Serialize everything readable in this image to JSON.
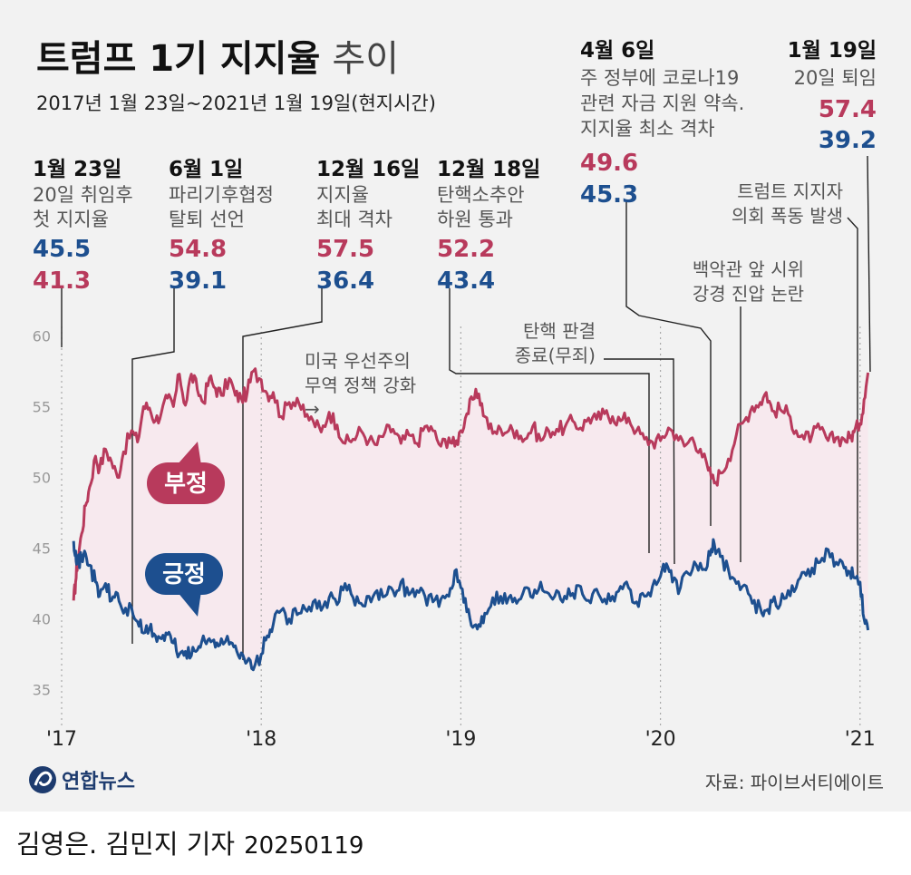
{
  "header": {
    "title_bold": "트럼프 1기 지지율",
    "title_light": "추이",
    "subtitle": "2017년 1월 23일~2021년 1월 19일(현지시간)"
  },
  "colors": {
    "negative": "#b83a5c",
    "positive": "#1d4f8f",
    "band": "#f7e9ee"
  },
  "callouts": [
    {
      "date": "1월 23일",
      "lines": [
        "20일 취임후",
        "첫 지지율"
      ],
      "values": [
        {
          "kind": "positive",
          "text": "45.5"
        },
        {
          "kind": "negative",
          "text": "41.3"
        }
      ]
    },
    {
      "date": "6월 1일",
      "lines": [
        "파리기후협정",
        "탈퇴 선언"
      ],
      "values": [
        {
          "kind": "negative",
          "text": "54.8"
        },
        {
          "kind": "positive",
          "text": "39.1"
        }
      ]
    },
    {
      "date": "12월 16일",
      "lines": [
        "지지율",
        "최대 격차"
      ],
      "values": [
        {
          "kind": "negative",
          "text": "57.5"
        },
        {
          "kind": "positive",
          "text": "36.4"
        }
      ]
    },
    {
      "date": "12월 18일",
      "lines": [
        "탄핵소추안",
        "하원 통과"
      ],
      "values": [
        {
          "kind": "negative",
          "text": "52.2"
        },
        {
          "kind": "positive",
          "text": "43.4"
        }
      ]
    },
    {
      "date": "4월 6일",
      "lines": [
        "주 정부에 코로나19",
        "관련 자금 지원 약속.",
        "지지율 최소 격차"
      ],
      "values": [
        {
          "kind": "negative",
          "text": "49.6"
        },
        {
          "kind": "positive",
          "text": "45.3"
        }
      ]
    },
    {
      "date": "1월 19일",
      "lines": [
        "20일 퇴임"
      ],
      "values": [
        {
          "kind": "negative",
          "text": "57.4"
        },
        {
          "kind": "positive",
          "text": "39.2"
        }
      ]
    }
  ],
  "annotations": [
    {
      "lines": [
        "미국 우선주의",
        "무역 정책 강화"
      ],
      "arrow": "→"
    },
    {
      "lines": [
        "탄핵 판결",
        "종료(무죄)"
      ]
    },
    {
      "lines": [
        "백악관 앞 시위",
        "강경 진압 논란"
      ]
    },
    {
      "lines": [
        "트럼트 지지자",
        "의회 폭동 발생"
      ]
    }
  ],
  "bubbles": {
    "negative": "부정",
    "positive": "긍정"
  },
  "source": "자료: 파이브서티에이트",
  "logo": "연합뉴스",
  "credit": {
    "authors": "김영은. 김민지 기자",
    "date": "20250119"
  },
  "chart_data": {
    "type": "line",
    "x_unit": "years since 2017-01-01",
    "xlim": [
      0,
      4.06
    ],
    "ylim": [
      33.5,
      61.5
    ],
    "yticks": [
      35,
      40,
      45,
      50,
      55,
      60
    ],
    "ytick_labels": [
      "35",
      "40",
      "45",
      "50",
      "55",
      "60"
    ],
    "xticks": [
      0,
      1,
      2,
      3,
      4
    ],
    "xtick_labels": [
      "'17",
      "'18",
      "'19",
      "'20",
      "'21"
    ],
    "series": [
      {
        "name": "부정",
        "kind": "negative",
        "points": [
          [
            0.06,
            41.3
          ],
          [
            0.07,
            42.6
          ],
          [
            0.08,
            44.2
          ],
          [
            0.1,
            46.0
          ],
          [
            0.12,
            48.0
          ],
          [
            0.14,
            49.3
          ],
          [
            0.17,
            51.5
          ],
          [
            0.19,
            50.6
          ],
          [
            0.22,
            52.0
          ],
          [
            0.25,
            51.1
          ],
          [
            0.28,
            50.0
          ],
          [
            0.31,
            51.8
          ],
          [
            0.35,
            53.3
          ],
          [
            0.38,
            52.5
          ],
          [
            0.41,
            55.0
          ],
          [
            0.44,
            54.9
          ],
          [
            0.47,
            54.0
          ],
          [
            0.5,
            54.6
          ],
          [
            0.53,
            55.6
          ],
          [
            0.56,
            55.0
          ],
          [
            0.59,
            57.3
          ],
          [
            0.62,
            55.1
          ],
          [
            0.65,
            57.3
          ],
          [
            0.68,
            56.2
          ],
          [
            0.71,
            55.3
          ],
          [
            0.74,
            57.0
          ],
          [
            0.77,
            56.3
          ],
          [
            0.8,
            55.8
          ],
          [
            0.84,
            57.0
          ],
          [
            0.87,
            55.8
          ],
          [
            0.9,
            55.6
          ],
          [
            0.93,
            56.0
          ],
          [
            0.96,
            57.5
          ],
          [
            1.0,
            56.9
          ],
          [
            1.03,
            55.9
          ],
          [
            1.06,
            56.0
          ],
          [
            1.1,
            54.3
          ],
          [
            1.14,
            55.3
          ],
          [
            1.18,
            55.6
          ],
          [
            1.22,
            54.3
          ],
          [
            1.26,
            54.0
          ],
          [
            1.3,
            53.2
          ],
          [
            1.34,
            54.6
          ],
          [
            1.38,
            53.7
          ],
          [
            1.42,
            52.4
          ],
          [
            1.46,
            52.7
          ],
          [
            1.5,
            53.3
          ],
          [
            1.54,
            52.6
          ],
          [
            1.58,
            52.3
          ],
          [
            1.62,
            53.2
          ],
          [
            1.66,
            53.4
          ],
          [
            1.7,
            52.4
          ],
          [
            1.74,
            53.0
          ],
          [
            1.78,
            52.4
          ],
          [
            1.82,
            53.6
          ],
          [
            1.86,
            53.3
          ],
          [
            1.9,
            52.2
          ],
          [
            1.94,
            52.8
          ],
          [
            1.97,
            52.2
          ],
          [
            2.0,
            53.3
          ],
          [
            2.03,
            54.5
          ],
          [
            2.06,
            55.5
          ],
          [
            2.09,
            55.9
          ],
          [
            2.12,
            54.3
          ],
          [
            2.16,
            53.1
          ],
          [
            2.2,
            53.4
          ],
          [
            2.24,
            53.3
          ],
          [
            2.28,
            53.3
          ],
          [
            2.32,
            52.7
          ],
          [
            2.36,
            53.6
          ],
          [
            2.4,
            52.6
          ],
          [
            2.44,
            53.3
          ],
          [
            2.48,
            53.4
          ],
          [
            2.52,
            53.5
          ],
          [
            2.56,
            54.0
          ],
          [
            2.6,
            53.5
          ],
          [
            2.64,
            54.2
          ],
          [
            2.68,
            54.1
          ],
          [
            2.72,
            54.5
          ],
          [
            2.76,
            54.3
          ],
          [
            2.8,
            54.0
          ],
          [
            2.84,
            54.2
          ],
          [
            2.88,
            53.3
          ],
          [
            2.92,
            52.7
          ],
          [
            2.96,
            52.5
          ],
          [
            3.0,
            52.6
          ],
          [
            3.04,
            53.5
          ],
          [
            3.08,
            53.0
          ],
          [
            3.12,
            52.2
          ],
          [
            3.16,
            52.8
          ],
          [
            3.2,
            52.0
          ],
          [
            3.24,
            50.5
          ],
          [
            3.27,
            49.6
          ],
          [
            3.3,
            50.3
          ],
          [
            3.34,
            51.3
          ],
          [
            3.38,
            53.0
          ],
          [
            3.42,
            54.0
          ],
          [
            3.46,
            55.0
          ],
          [
            3.5,
            55.3
          ],
          [
            3.53,
            56.0
          ],
          [
            3.56,
            54.7
          ],
          [
            3.6,
            54.8
          ],
          [
            3.64,
            54.5
          ],
          [
            3.68,
            53.3
          ],
          [
            3.72,
            52.7
          ],
          [
            3.76,
            53.0
          ],
          [
            3.8,
            53.4
          ],
          [
            3.84,
            52.6
          ],
          [
            3.88,
            52.8
          ],
          [
            3.92,
            52.7
          ],
          [
            3.95,
            52.8
          ],
          [
            3.97,
            53.2
          ],
          [
            4.0,
            53.8
          ],
          [
            4.02,
            55.5
          ],
          [
            4.04,
            57.4
          ]
        ]
      },
      {
        "name": "긍정",
        "kind": "positive",
        "points": [
          [
            0.06,
            45.5
          ],
          [
            0.07,
            44.8
          ],
          [
            0.08,
            44.0
          ],
          [
            0.1,
            44.2
          ],
          [
            0.12,
            44.6
          ],
          [
            0.14,
            43.8
          ],
          [
            0.17,
            42.6
          ],
          [
            0.19,
            41.6
          ],
          [
            0.22,
            42.5
          ],
          [
            0.25,
            41.3
          ],
          [
            0.28,
            41.8
          ],
          [
            0.31,
            40.4
          ],
          [
            0.35,
            40.8
          ],
          [
            0.38,
            39.8
          ],
          [
            0.41,
            39.0
          ],
          [
            0.44,
            39.3
          ],
          [
            0.47,
            38.8
          ],
          [
            0.5,
            38.6
          ],
          [
            0.53,
            38.9
          ],
          [
            0.56,
            38.3
          ],
          [
            0.59,
            37.5
          ],
          [
            0.62,
            37.7
          ],
          [
            0.65,
            37.4
          ],
          [
            0.68,
            37.8
          ],
          [
            0.71,
            38.8
          ],
          [
            0.74,
            38.6
          ],
          [
            0.77,
            38.0
          ],
          [
            0.8,
            38.6
          ],
          [
            0.84,
            38.2
          ],
          [
            0.87,
            38.1
          ],
          [
            0.9,
            37.6
          ],
          [
            0.93,
            37.0
          ],
          [
            0.96,
            36.4
          ],
          [
            1.0,
            37.5
          ],
          [
            1.03,
            38.8
          ],
          [
            1.06,
            39.6
          ],
          [
            1.1,
            40.6
          ],
          [
            1.14,
            40.0
          ],
          [
            1.18,
            40.3
          ],
          [
            1.22,
            40.7
          ],
          [
            1.26,
            41.2
          ],
          [
            1.3,
            40.6
          ],
          [
            1.34,
            41.5
          ],
          [
            1.38,
            41.0
          ],
          [
            1.42,
            42.5
          ],
          [
            1.46,
            41.5
          ],
          [
            1.5,
            41.1
          ],
          [
            1.54,
            41.6
          ],
          [
            1.58,
            42.0
          ],
          [
            1.62,
            41.6
          ],
          [
            1.66,
            42.0
          ],
          [
            1.7,
            42.6
          ],
          [
            1.74,
            41.7
          ],
          [
            1.78,
            42.0
          ],
          [
            1.82,
            41.6
          ],
          [
            1.86,
            41.2
          ],
          [
            1.9,
            41.4
          ],
          [
            1.94,
            41.6
          ],
          [
            1.97,
            43.4
          ],
          [
            2.0,
            42.2
          ],
          [
            2.03,
            40.5
          ],
          [
            2.06,
            39.4
          ],
          [
            2.09,
            39.6
          ],
          [
            2.12,
            40.4
          ],
          [
            2.16,
            41.5
          ],
          [
            2.2,
            41.6
          ],
          [
            2.24,
            41.5
          ],
          [
            2.28,
            41.1
          ],
          [
            2.32,
            42.2
          ],
          [
            2.36,
            41.5
          ],
          [
            2.4,
            42.6
          ],
          [
            2.44,
            41.8
          ],
          [
            2.48,
            42.0
          ],
          [
            2.52,
            41.6
          ],
          [
            2.56,
            41.8
          ],
          [
            2.6,
            42.3
          ],
          [
            2.64,
            41.3
          ],
          [
            2.68,
            42.1
          ],
          [
            2.72,
            41.4
          ],
          [
            2.76,
            41.6
          ],
          [
            2.8,
            42.3
          ],
          [
            2.84,
            42.2
          ],
          [
            2.88,
            41.2
          ],
          [
            2.92,
            41.6
          ],
          [
            2.96,
            42.3
          ],
          [
            3.0,
            43.0
          ],
          [
            3.03,
            43.9
          ],
          [
            3.06,
            42.6
          ],
          [
            3.1,
            42.2
          ],
          [
            3.14,
            43.2
          ],
          [
            3.18,
            43.8
          ],
          [
            3.22,
            43.5
          ],
          [
            3.25,
            44.5
          ],
          [
            3.27,
            45.3
          ],
          [
            3.3,
            44.4
          ],
          [
            3.34,
            43.5
          ],
          [
            3.38,
            42.5
          ],
          [
            3.42,
            42.4
          ],
          [
            3.46,
            41.1
          ],
          [
            3.5,
            40.8
          ],
          [
            3.53,
            40.6
          ],
          [
            3.56,
            41.2
          ],
          [
            3.6,
            41.0
          ],
          [
            3.64,
            42.0
          ],
          [
            3.68,
            42.2
          ],
          [
            3.72,
            43.3
          ],
          [
            3.76,
            43.6
          ],
          [
            3.8,
            44.0
          ],
          [
            3.84,
            44.9
          ],
          [
            3.88,
            44.0
          ],
          [
            3.92,
            43.6
          ],
          [
            3.95,
            43.3
          ],
          [
            3.97,
            42.9
          ],
          [
            4.0,
            42.6
          ],
          [
            4.02,
            40.0
          ],
          [
            4.04,
            39.2
          ]
        ]
      }
    ]
  }
}
